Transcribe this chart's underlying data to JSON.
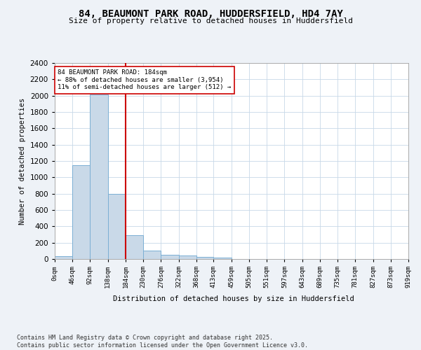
{
  "title": "84, BEAUMONT PARK ROAD, HUDDERSFIELD, HD4 7AY",
  "subtitle": "Size of property relative to detached houses in Huddersfield",
  "xlabel": "Distribution of detached houses by size in Huddersfield",
  "ylabel": "Number of detached properties",
  "bar_edges": [
    0,
    46,
    92,
    138,
    184,
    230,
    276,
    322,
    368,
    413,
    459,
    505,
    551,
    597,
    643,
    689,
    735,
    781,
    827,
    873,
    919
  ],
  "bar_heights": [
    35,
    1150,
    2010,
    800,
    295,
    105,
    48,
    40,
    30,
    20,
    0,
    0,
    0,
    0,
    0,
    0,
    0,
    0,
    0,
    0
  ],
  "bar_color": "#c9d9e8",
  "bar_edgecolor": "#7bafd4",
  "vline_x": 184,
  "vline_color": "#cc0000",
  "annotation_text": "84 BEAUMONT PARK ROAD: 184sqm\n← 88% of detached houses are smaller (3,954)\n11% of semi-detached houses are larger (512) →",
  "annotation_box_color": "#ffffff",
  "annotation_box_edgecolor": "#cc0000",
  "ylim": [
    0,
    2400
  ],
  "yticks": [
    0,
    200,
    400,
    600,
    800,
    1000,
    1200,
    1400,
    1600,
    1800,
    2000,
    2200,
    2400
  ],
  "tick_labels": [
    "0sqm",
    "46sqm",
    "92sqm",
    "138sqm",
    "184sqm",
    "230sqm",
    "276sqm",
    "322sqm",
    "368sqm",
    "413sqm",
    "459sqm",
    "505sqm",
    "551sqm",
    "597sqm",
    "643sqm",
    "689sqm",
    "735sqm",
    "781sqm",
    "827sqm",
    "873sqm",
    "919sqm"
  ],
  "footer_text": "Contains HM Land Registry data © Crown copyright and database right 2025.\nContains public sector information licensed under the Open Government Licence v3.0.",
  "background_color": "#eef2f7",
  "plot_bg_color": "#ffffff",
  "grid_color": "#c8d8e8"
}
